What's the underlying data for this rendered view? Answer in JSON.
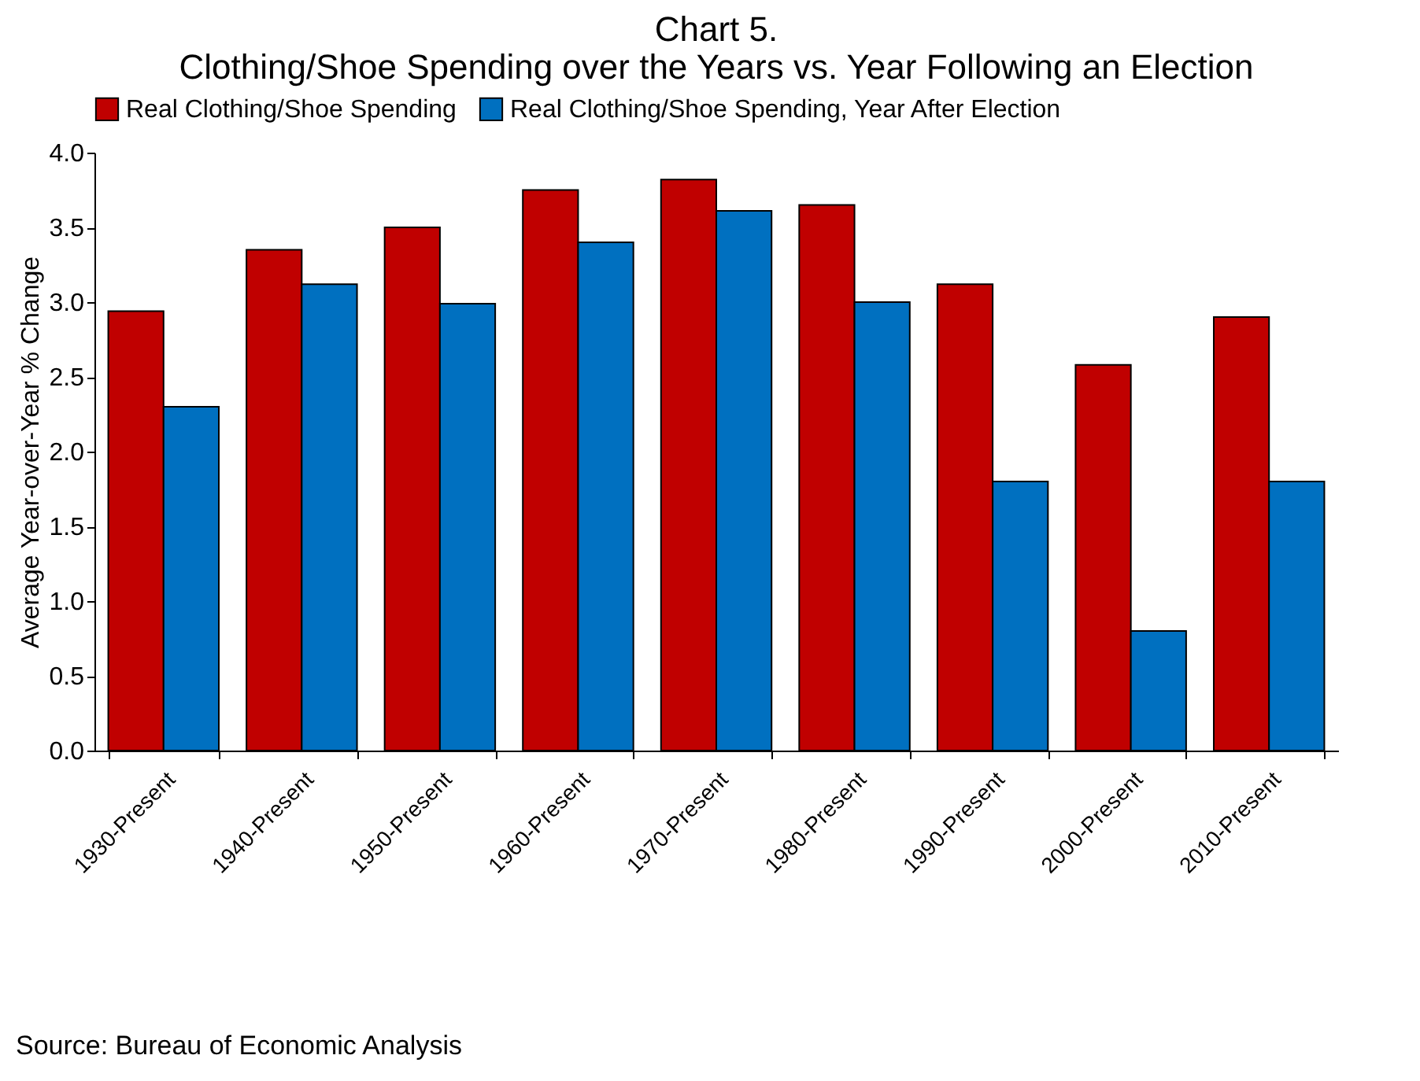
{
  "chart_data": {
    "type": "bar",
    "title": [
      "Chart 5.",
      "Clothing/Shoe Spending over the Years vs. Year Following an Election"
    ],
    "ylabel": "Average Year-over-Year % Change",
    "categories": [
      "1930-Present",
      "1940-Present",
      "1950-Present",
      "1960-Present",
      "1970-Present",
      "1980-Present",
      "1990-Present",
      "2000-Present",
      "2010-Present"
    ],
    "series": [
      {
        "name": "Real Clothing/Shoe Spending",
        "color": "#c00000",
        "values": [
          2.94,
          3.35,
          3.5,
          3.75,
          3.82,
          3.65,
          3.12,
          2.58,
          2.9
        ]
      },
      {
        "name": "Real Clothing/Shoe Spending, Year After Election",
        "color": "#0070c0",
        "values": [
          2.3,
          3.12,
          2.99,
          3.4,
          3.61,
          3.0,
          1.8,
          0.8,
          1.8
        ]
      }
    ],
    "ylim": [
      0,
      4
    ],
    "yticks": [
      {
        "value": 0,
        "label": "0.0"
      },
      {
        "value": 0.5,
        "label": "0.5"
      },
      {
        "value": 1,
        "label": "1.0"
      },
      {
        "value": 1.5,
        "label": "1.5"
      },
      {
        "value": 2,
        "label": "2.0"
      },
      {
        "value": 2.5,
        "label": "2.5"
      },
      {
        "value": 3,
        "label": "3.0"
      },
      {
        "value": 3.5,
        "label": "3.5"
      },
      {
        "value": 4,
        "label": "4.0"
      }
    ],
    "legend": "top",
    "annotations": [
      "Source:  Bureau of Economic Analysis"
    ]
  }
}
